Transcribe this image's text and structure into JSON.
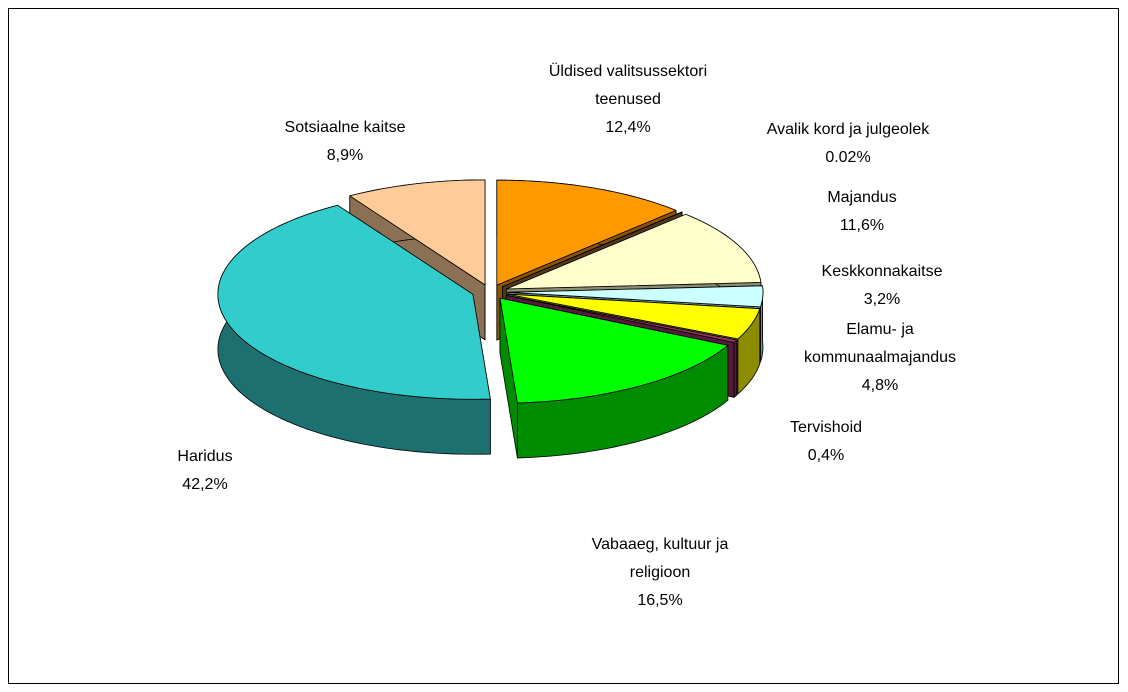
{
  "chart_data": {
    "type": "pie",
    "labels": [
      "Üldised valitsussektori teenused",
      "Avalik kord ja julgeolek",
      "Majandus",
      "Keskkonnakaitse",
      "Elamu- ja kommunaalmajandus",
      "Tervishoid",
      "Vabaaeg, kultuur ja religioon",
      "Haridus",
      "Sotsiaalne kaitse"
    ],
    "values": [
      12.4,
      0.02,
      11.6,
      3.2,
      4.8,
      0.4,
      16.5,
      42.2,
      8.9
    ],
    "value_labels": [
      "12,4%",
      "0.02%",
      "11,6%",
      "3,2%",
      "4,8%",
      "0,4%",
      "16,5%",
      "42,2%",
      "8,9%"
    ],
    "colors": [
      "#ff9900",
      "#996633",
      "#ffffcc",
      "#ccffff",
      "#ffff00",
      "#993366",
      "#00ff00",
      "#33cccc",
      "#ffcc99"
    ]
  }
}
